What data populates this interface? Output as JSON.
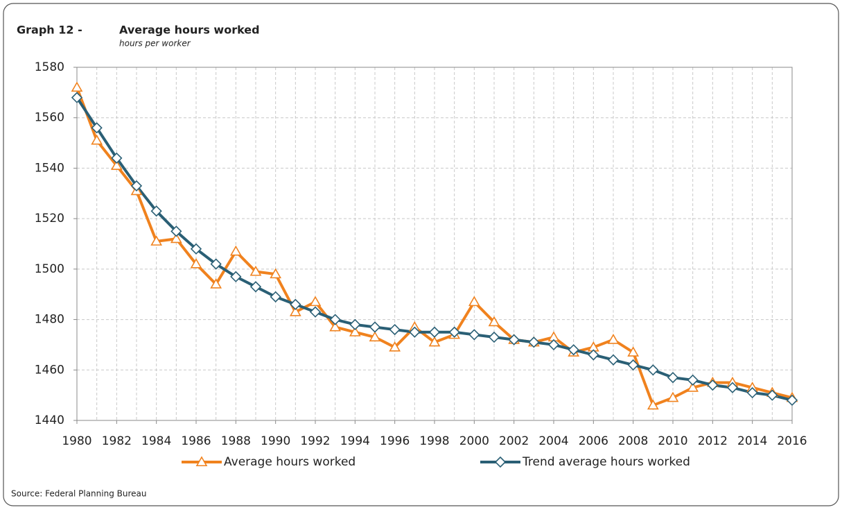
{
  "chart_data": {
    "type": "line",
    "title_prefix": "Graph 12 -",
    "title": "Average hours worked",
    "subtitle": "hours per worker",
    "source": "Source: Federal Planning Bureau",
    "x": [
      1980,
      1981,
      1982,
      1983,
      1984,
      1985,
      1986,
      1987,
      1988,
      1989,
      1990,
      1991,
      1992,
      1993,
      1994,
      1995,
      1996,
      1997,
      1998,
      1999,
      2000,
      2001,
      2002,
      2003,
      2004,
      2005,
      2006,
      2007,
      2008,
      2009,
      2010,
      2011,
      2012,
      2013,
      2014,
      2015,
      2016
    ],
    "series": [
      {
        "name": "Average hours worked",
        "color": "#f0821e",
        "marker": "triangle",
        "values": [
          1572,
          1551,
          1541,
          1531,
          1511,
          1512,
          1502,
          1494,
          1507,
          1499,
          1498,
          1483,
          1487,
          1477,
          1475,
          1473,
          1469,
          1477,
          1471,
          1474,
          1487,
          1479,
          1472,
          1471,
          1473,
          1467,
          1469,
          1472,
          1467,
          1446,
          1449,
          1453,
          1455,
          1455,
          1453,
          1451,
          1449
        ]
      },
      {
        "name": "Trend average hours worked",
        "color": "#2a5f75",
        "marker": "diamond",
        "values": [
          1568,
          1556,
          1544,
          1533,
          1523,
          1515,
          1508,
          1502,
          1497,
          1493,
          1489,
          1486,
          1483,
          1480,
          1478,
          1477,
          1476,
          1475,
          1475,
          1475,
          1474,
          1473,
          1472,
          1471,
          1470,
          1468,
          1466,
          1464,
          1462,
          1460,
          1457,
          1456,
          1454,
          1453,
          1451,
          1450,
          1448
        ]
      }
    ],
    "xlim": [
      1980,
      2016
    ],
    "xticks": [
      1980,
      1982,
      1984,
      1986,
      1988,
      1990,
      1992,
      1994,
      1996,
      1998,
      2000,
      2002,
      2004,
      2006,
      2008,
      2010,
      2012,
      2014,
      2016
    ],
    "ylim": [
      1440,
      1580
    ],
    "yticks": [
      1440,
      1460,
      1480,
      1500,
      1520,
      1540,
      1560,
      1580
    ],
    "grid": true,
    "legend": "bottom"
  }
}
